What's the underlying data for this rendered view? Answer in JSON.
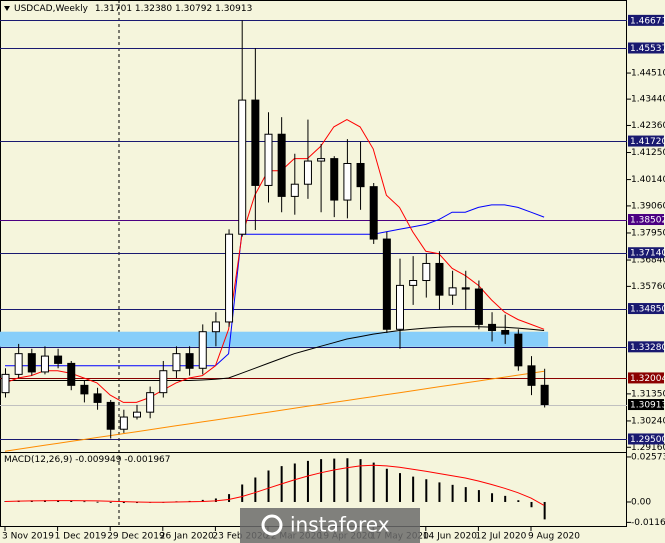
{
  "chart_data": [
    {
      "type": "candlestick",
      "title": "USDCAD,Weekly",
      "title_values": [
        "1.31701",
        "1.32380",
        "1.30792",
        "1.30913"
      ],
      "categories": [
        "3 Nov 2019",
        null,
        null,
        null,
        "1 Dec 2019",
        null,
        null,
        null,
        "29 Dec 2019",
        null,
        null,
        null,
        "26 Jan 2020",
        null,
        null,
        null,
        "23 Feb 2020",
        null,
        null,
        null,
        "22 Mar 2020",
        null,
        null,
        null,
        "19 Apr 2020",
        null,
        null,
        null,
        "17 May 2020",
        null,
        null,
        null,
        "14 Jun 2020",
        null,
        null,
        null,
        "12 Jul 2020",
        null,
        null,
        null,
        "9 Aug 2020",
        null
      ],
      "open": [
        1.314,
        1.3215,
        1.33,
        1.3225,
        1.329,
        1.326,
        1.317,
        1.3135,
        1.31,
        1.299,
        1.304,
        1.306,
        1.314,
        1.323,
        1.33,
        1.324,
        1.339,
        1.343,
        1.379,
        1.434,
        1.399,
        1.42,
        1.3945,
        1.3995,
        1.409,
        1.41,
        1.393,
        1.408,
        1.3985,
        1.377,
        1.34,
        1.358,
        1.36,
        1.367,
        1.354,
        1.357,
        1.3565,
        1.342,
        1.3395,
        1.338,
        1.325,
        1.31701
      ],
      "high": [
        1.324,
        1.334,
        1.332,
        1.333,
        1.332,
        1.327,
        1.319,
        1.316,
        1.311,
        1.307,
        1.309,
        1.3165,
        1.327,
        1.333,
        1.333,
        1.342,
        1.347,
        1.381,
        1.46671,
        1.4553,
        1.429,
        1.427,
        1.412,
        1.426,
        1.416,
        1.411,
        1.418,
        1.417,
        1.4,
        1.38,
        1.369,
        1.37,
        1.371,
        1.372,
        1.364,
        1.364,
        1.36,
        1.347,
        1.346,
        1.34,
        1.329,
        1.3238
      ],
      "low": [
        1.312,
        1.32,
        1.321,
        1.3215,
        1.324,
        1.315,
        1.31,
        1.307,
        1.2952,
        1.2975,
        1.303,
        1.3035,
        1.312,
        1.32,
        1.321,
        1.3215,
        1.333,
        1.341,
        1.378,
        1.3807,
        1.392,
        1.388,
        1.387,
        1.3935,
        1.388,
        1.386,
        1.3855,
        1.389,
        1.375,
        1.3385,
        1.332,
        1.35,
        1.353,
        1.348,
        1.35,
        1.348,
        1.34,
        1.335,
        1.334,
        1.323,
        1.313,
        1.30792
      ],
      "close": [
        1.3215,
        1.33,
        1.3225,
        1.329,
        1.326,
        1.317,
        1.3135,
        1.31,
        1.299,
        1.304,
        1.306,
        1.314,
        1.323,
        1.33,
        1.324,
        1.339,
        1.343,
        1.379,
        1.434,
        1.399,
        1.42,
        1.3945,
        1.3995,
        1.409,
        1.41,
        1.393,
        1.408,
        1.3985,
        1.377,
        1.34,
        1.358,
        1.36,
        1.367,
        1.354,
        1.357,
        1.3565,
        1.342,
        1.3395,
        1.338,
        1.325,
        1.317,
        1.30913
      ],
      "series": [
        {
          "color": "#ff8c00",
          "values": [
            1.29,
            1.2908,
            1.2916,
            1.2924,
            1.2932,
            1.294,
            1.2948,
            1.2956,
            1.2964,
            1.2972,
            1.298,
            1.2988,
            1.2996,
            1.3004,
            1.3012,
            1.302,
            1.3028,
            1.3036,
            1.3044,
            1.3052,
            1.306,
            1.3068,
            1.3076,
            1.3084,
            1.3092,
            1.31,
            1.3108,
            1.3116,
            1.3124,
            1.3132,
            1.314,
            1.3148,
            1.3156,
            1.3164,
            1.3172,
            1.318,
            1.3188,
            1.3196,
            1.3204,
            1.3212,
            1.322,
            1.3228
          ]
        },
        {
          "color": "#000000",
          "values": [
            1.319,
            1.319,
            1.319,
            1.319,
            1.319,
            1.319,
            1.319,
            1.319,
            1.319,
            1.319,
            1.319,
            1.319,
            1.319,
            1.319,
            1.319,
            1.3192,
            1.3195,
            1.32,
            1.322,
            1.324,
            1.326,
            1.328,
            1.33,
            1.3315,
            1.333,
            1.3345,
            1.336,
            1.337,
            1.338,
            1.3388,
            1.3395,
            1.34,
            1.3405,
            1.3408,
            1.341,
            1.341,
            1.341,
            1.3409,
            1.3408,
            1.3405,
            1.34,
            1.3395
          ]
        },
        {
          "color": "#0000ff",
          "values": [
            1.325,
            1.325,
            1.325,
            1.325,
            1.325,
            1.325,
            1.325,
            1.325,
            1.325,
            1.325,
            1.325,
            1.325,
            1.325,
            1.325,
            1.325,
            1.325,
            1.325,
            1.33,
            1.379,
            1.379,
            1.379,
            1.379,
            1.379,
            1.379,
            1.379,
            1.379,
            1.379,
            1.379,
            1.379,
            1.38,
            1.381,
            1.382,
            1.383,
            1.385,
            1.388,
            1.388,
            1.39,
            1.391,
            1.391,
            1.39,
            1.388,
            1.386
          ]
        },
        {
          "color": "#ff0000",
          "values": [
            1.318,
            1.32,
            1.321,
            1.323,
            1.323,
            1.322,
            1.32,
            1.318,
            1.313,
            1.31,
            1.31,
            1.312,
            1.315,
            1.318,
            1.32,
            1.321,
            1.325,
            1.34,
            1.378,
            1.395,
            1.405,
            1.405,
            1.41,
            1.41,
            1.415,
            1.423,
            1.426,
            1.423,
            1.414,
            1.395,
            1.39,
            1.38,
            1.372,
            1.371,
            1.365,
            1.362,
            1.358,
            1.352,
            1.347,
            1.344,
            1.342,
            1.34
          ]
        }
      ],
      "zones": [
        {
          "from": 1.3328,
          "to": 1.339,
          "color": "#87cefa"
        }
      ],
      "levels": [
        {
          "value": 1.46671,
          "color": "#191970"
        },
        {
          "value": 1.45537,
          "color": "#191970"
        },
        {
          "value": 1.4172,
          "label": "1.41720",
          "color": "#191970"
        },
        {
          "value": 1.38502,
          "color": "#4b0082"
        },
        {
          "value": 1.3714,
          "label": "1.37140",
          "color": "#191970"
        },
        {
          "value": 1.3485,
          "label": "1.34850",
          "color": "#191970"
        },
        {
          "value": 1.3328,
          "label": "1.33280",
          "color": "#191970"
        },
        {
          "value": 1.32004,
          "color": "#8b0000"
        },
        {
          "value": 1.30913,
          "color": "#000000"
        },
        {
          "value": 1.295,
          "label": "1.29500",
          "color": "#191970"
        }
      ],
      "ylim": [
        1.28966,
        1.47506
      ],
      "yticks": [
        {
          "value": 1.4451,
          "label": "1.44510"
        },
        {
          "value": 1.4344,
          "label": "1.43440"
        },
        {
          "value": 1.4236,
          "label": "1.42360"
        },
        {
          "value": 1.4125,
          "label": "1.41250"
        },
        {
          "value": 1.4014,
          "label": "1.40140"
        },
        {
          "value": 1.3906,
          "label": "1.39060"
        },
        {
          "value": 1.3795,
          "label": "1.37950"
        },
        {
          "value": 1.3684,
          "label": "1.36840"
        },
        {
          "value": 1.3576,
          "label": "1.35760"
        },
        {
          "value": 1.3135,
          "label": "1.31350"
        },
        {
          "value": 1.3024,
          "label": "1.30240"
        },
        {
          "value": 1.2916,
          "label": "1.29160"
        }
      ]
    },
    {
      "type": "bar",
      "title": "MACD(12,26,9)",
      "series": [
        {
          "color": "#000000",
          "values": [
            0.0005,
            0.0008,
            0.0009,
            0.001,
            0.001,
            0.0007,
            0.0004,
            0.0001,
            -0.0004,
            -0.0006,
            -0.0006,
            -0.0004,
            0.0,
            0.0004,
            0.0006,
            0.0012,
            0.002,
            0.0045,
            0.01,
            0.014,
            0.018,
            0.0205,
            0.022,
            0.0235,
            0.0245,
            0.0248,
            0.025,
            0.0245,
            0.0225,
            0.019,
            0.0165,
            0.0145,
            0.013,
            0.0112,
            0.0098,
            0.0085,
            0.0068,
            0.005,
            0.0035,
            0.001,
            -0.003,
            -0.009949
          ]
        },
        {
          "color": "#ff0000",
          "type": "line",
          "values": [
            0.0003,
            0.0005,
            0.0006,
            0.0007,
            0.0008,
            0.0008,
            0.0007,
            0.0006,
            0.0004,
            0.0002,
            0.0,
            -0.0001,
            -0.0001,
            0.0,
            0.0001,
            0.0003,
            0.0006,
            0.0014,
            0.0031,
            0.0053,
            0.0078,
            0.0103,
            0.0126,
            0.0148,
            0.0167,
            0.0183,
            0.0196,
            0.0206,
            0.021,
            0.0206,
            0.0198,
            0.0187,
            0.0176,
            0.0163,
            0.015,
            0.0137,
            0.012,
            0.01,
            0.0078,
            0.0053,
            0.0022,
            -0.001967
          ]
        }
      ],
      "ylim": [
        -0.0143,
        0.028
      ],
      "yticks": [
        0.025736,
        {
          "value": 0,
          "label": "0.00"
        },
        -0.011658
      ]
    }
  ],
  "watermark": "instaforex"
}
